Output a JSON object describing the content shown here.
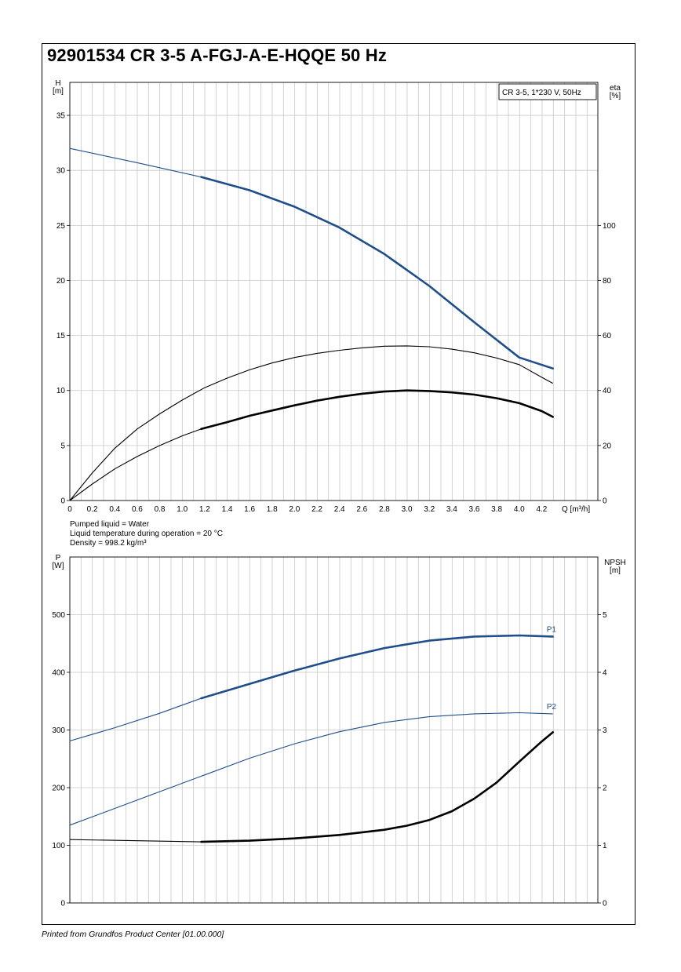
{
  "title": "92901534 CR 3-5 A-FGJ-A-E-HQQE 50 Hz",
  "footer": "Printed from Grundfos Product Center [01.00.000]",
  "liquid_info": [
    "Pumped liquid = Water",
    "Liquid temperature during operation = 20 °C",
    "Density = 998.2 kg/m³"
  ],
  "colors": {
    "blue": "#1f4e8c",
    "black": "#000000",
    "grid": "#c8c8c8"
  },
  "chart_data": [
    {
      "type": "line",
      "legend_box": "CR 3-5, 1*230 V, 50Hz",
      "legend_placement": "top-right",
      "ylabel_left": [
        "H",
        "[m]"
      ],
      "ylabel_right": [
        "eta",
        "[%]"
      ],
      "xlabel": "Q [m³/h]",
      "xlim": [
        0,
        4.7
      ],
      "ylim_left": [
        0,
        38
      ],
      "ylim_right": [
        0,
        152
      ],
      "x_ticks": [
        0,
        0.2,
        0.4,
        0.6,
        0.8,
        1.0,
        1.2,
        1.4,
        1.6,
        1.8,
        2.0,
        2.2,
        2.4,
        2.6,
        2.8,
        3.0,
        3.2,
        3.4,
        3.6,
        3.8,
        4.0,
        4.2
      ],
      "x_tick_labels": [
        "0",
        "0.2",
        "0.4",
        "0.6",
        "0.8",
        "1.0",
        "1.2",
        "1.4",
        "1.6",
        "1.8",
        "2.0",
        "2.2",
        "2.4",
        "2.6",
        "2.8",
        "3.0",
        "3.2",
        "3.4",
        "3.6",
        "3.8",
        "4.0",
        "4.2"
      ],
      "y_left_ticks": [
        0,
        5,
        10,
        15,
        20,
        25,
        30,
        35
      ],
      "y_left_tick_labels": [
        "0",
        "5",
        "10",
        "15",
        "20",
        "25",
        "30",
        "35"
      ],
      "y_right_ticks": [
        0,
        20,
        40,
        60,
        80,
        100
      ],
      "y_right_tick_labels": [
        "0",
        "20",
        "40",
        "60",
        "80",
        "100"
      ],
      "grid": true,
      "series": [
        {
          "axis": "left",
          "color": "#1f4e8c",
          "duty_from": 1.17,
          "x": [
            0,
            0.6,
            1.17,
            1.6,
            2.0,
            2.4,
            2.8,
            3.2,
            3.6,
            4.0,
            4.3
          ],
          "y": [
            32.0,
            30.7,
            29.4,
            28.2,
            26.7,
            24.8,
            22.4,
            19.5,
            16.2,
            13.0,
            12.0
          ]
        },
        {
          "axis": "right",
          "color": "#000000",
          "x": [
            0,
            0.2,
            0.4,
            0.6,
            0.8,
            1.0,
            1.2,
            1.4,
            1.6,
            1.8,
            2.0,
            2.2,
            2.4,
            2.6,
            2.8,
            3.0,
            3.2,
            3.4,
            3.6,
            3.8,
            4.0,
            4.2,
            4.3
          ],
          "y": [
            0,
            10,
            19,
            26,
            31.5,
            36.5,
            41,
            44.5,
            47.5,
            50,
            52,
            53.5,
            54.6,
            55.5,
            56.1,
            56.2,
            55.9,
            55.0,
            53.7,
            51.8,
            49.4,
            44.8,
            42.6
          ]
        },
        {
          "axis": "right",
          "color": "#000000",
          "duty_from": 1.17,
          "x": [
            0,
            0.2,
            0.4,
            0.6,
            0.8,
            1.0,
            1.17,
            1.4,
            1.6,
            1.8,
            2.0,
            2.2,
            2.4,
            2.6,
            2.8,
            3.0,
            3.2,
            3.4,
            3.6,
            3.8,
            4.0,
            4.2,
            4.3
          ],
          "y": [
            0,
            6,
            11.5,
            16,
            20,
            23.5,
            26,
            28.5,
            30.8,
            32.7,
            34.6,
            36.3,
            37.7,
            38.8,
            39.6,
            40,
            39.8,
            39.3,
            38.5,
            37.2,
            35.4,
            32.5,
            30.4
          ]
        }
      ]
    },
    {
      "type": "line",
      "ylabel_left": [
        "P",
        "[W]"
      ],
      "ylabel_right": [
        "NPSH",
        "[m]"
      ],
      "xlim": [
        0,
        4.7
      ],
      "ylim_left": [
        0,
        600
      ],
      "ylim_right": [
        0,
        6
      ],
      "y_left_ticks": [
        0,
        100,
        200,
        300,
        400,
        500
      ],
      "y_left_tick_labels": [
        "0",
        "100",
        "200",
        "300",
        "400",
        "500"
      ],
      "y_right_ticks": [
        0,
        1,
        2,
        3,
        4,
        5
      ],
      "y_right_tick_labels": [
        "0",
        "1",
        "2",
        "3",
        "4",
        "5"
      ],
      "grid": true,
      "series": [
        {
          "name": "P1",
          "axis": "left",
          "color": "#1f4e8c",
          "duty_from": 1.17,
          "x": [
            0,
            0.4,
            0.8,
            1.17,
            1.6,
            2.0,
            2.4,
            2.8,
            3.2,
            3.6,
            4.0,
            4.3
          ],
          "y": [
            281,
            304,
            329,
            355,
            380,
            403,
            424,
            442,
            455,
            462,
            464,
            462
          ]
        },
        {
          "name": "P2",
          "axis": "left",
          "color": "#1f4e8c",
          "x": [
            0,
            0.4,
            0.8,
            1.2,
            1.6,
            2.0,
            2.4,
            2.8,
            3.2,
            3.6,
            4.0,
            4.3
          ],
          "y": [
            135,
            164,
            193,
            222,
            251,
            276,
            297,
            313,
            323,
            328,
            330,
            328
          ]
        },
        {
          "name": "NPSH",
          "axis": "right",
          "color": "#000000",
          "duty_from": 1.17,
          "x": [
            0,
            1.17,
            1.6,
            2.0,
            2.4,
            2.8,
            3.0,
            3.2,
            3.4,
            3.6,
            3.8,
            4.0,
            4.2,
            4.3
          ],
          "y": [
            1.1,
            1.06,
            1.08,
            1.12,
            1.18,
            1.27,
            1.34,
            1.44,
            1.59,
            1.81,
            2.09,
            2.45,
            2.8,
            2.96
          ]
        }
      ]
    }
  ]
}
